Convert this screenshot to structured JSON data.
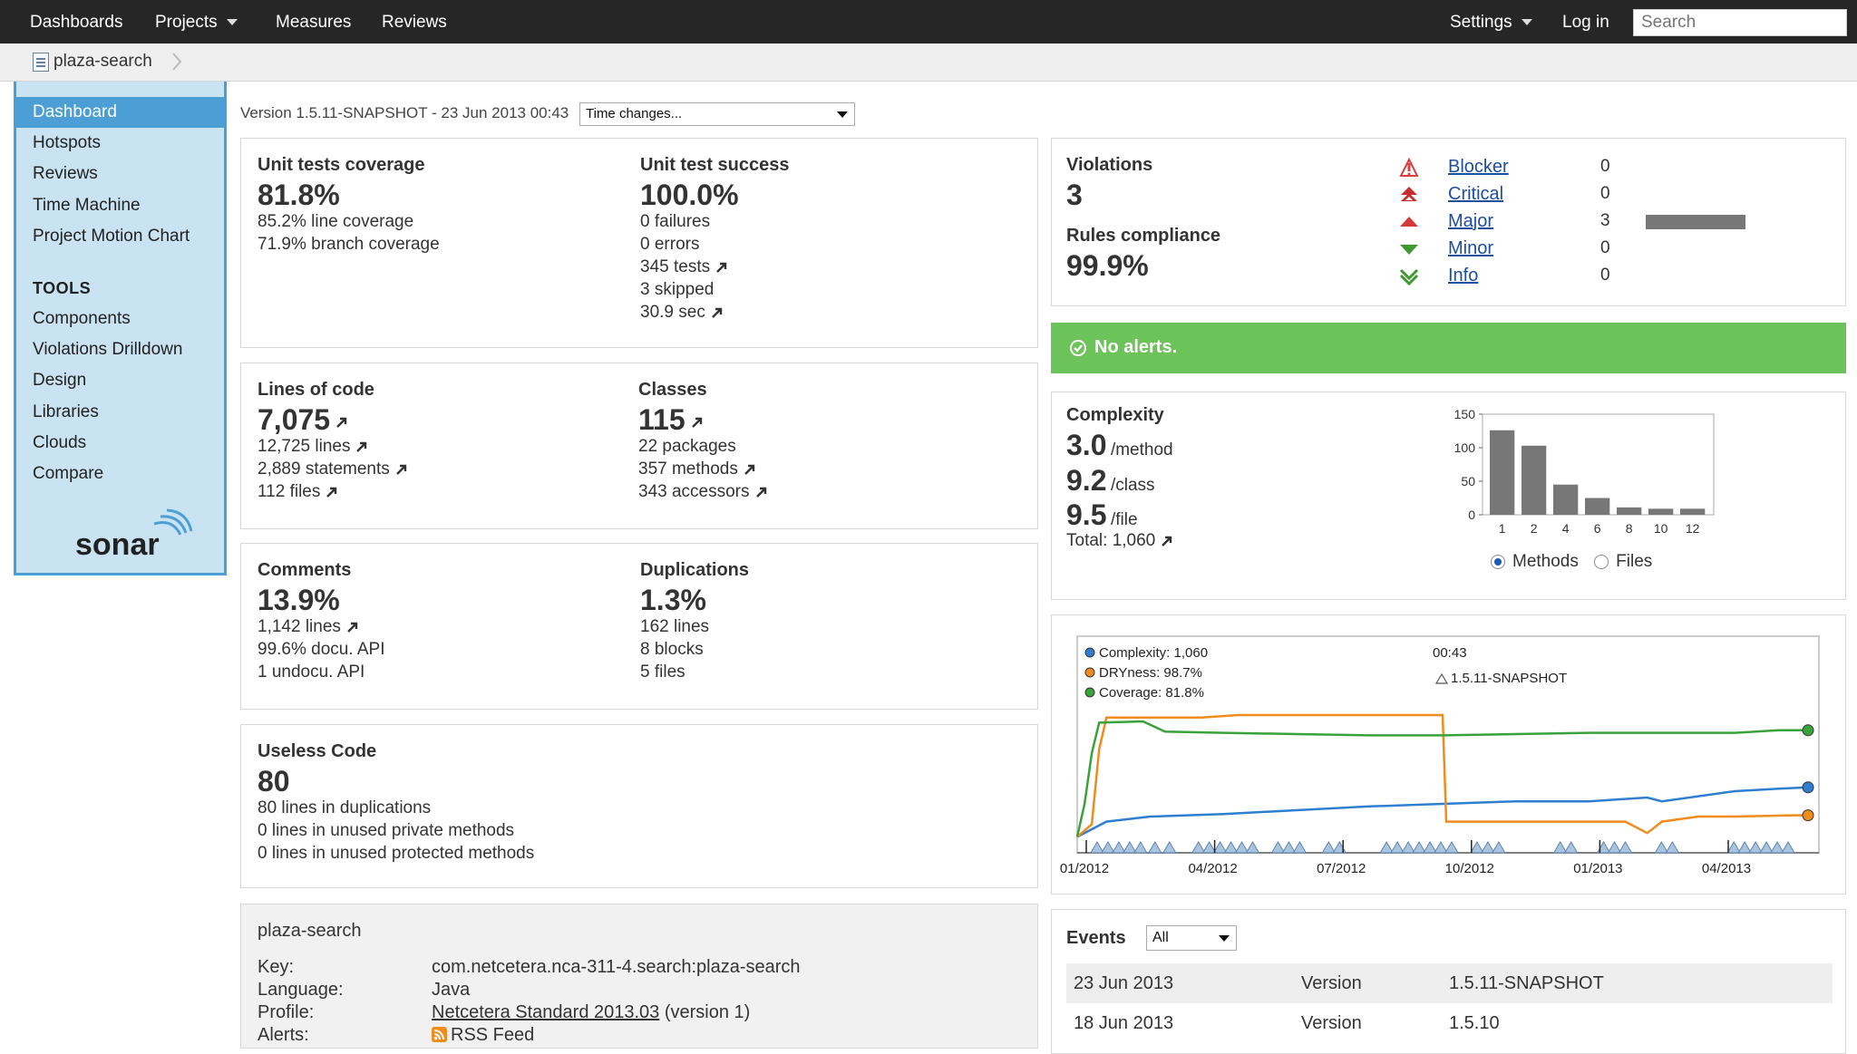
{
  "nav": {
    "dashboards": "Dashboards",
    "projects": "Projects",
    "measures": "Measures",
    "reviews": "Reviews",
    "settings": "Settings",
    "login": "Log in",
    "search_placeholder": "Search"
  },
  "breadcrumb": {
    "project": "plaza-search"
  },
  "sidebar": {
    "items": [
      "Dashboard",
      "Hotspots",
      "Reviews",
      "Time Machine",
      "Project Motion Chart"
    ],
    "tools_heading": "TOOLS",
    "tools": [
      "Components",
      "Violations Drilldown",
      "Design",
      "Libraries",
      "Clouds",
      "Compare"
    ],
    "logo_text": "sonar"
  },
  "header": {
    "version_line": "Version 1.5.11-SNAPSHOT - 23 Jun 2013 00:43",
    "time_changes": "Time changes..."
  },
  "tests": {
    "coverage_title": "Unit tests coverage",
    "coverage_value": "81.8%",
    "line_coverage": "85.2% line coverage",
    "branch_coverage": "71.9% branch coverage",
    "success_title": "Unit test success",
    "success_value": "100.0%",
    "failures": "0 failures",
    "errors": "0 errors",
    "tests": "345 tests",
    "skipped": "3 skipped",
    "duration": "30.9 sec"
  },
  "size": {
    "loc_title": "Lines of code",
    "loc_value": "7,075",
    "lines": "12,725 lines",
    "statements": "2,889 statements",
    "files": "112 files",
    "classes_title": "Classes",
    "classes_value": "115",
    "packages": "22 packages",
    "methods": "357 methods",
    "accessors": "343 accessors"
  },
  "comments": {
    "title": "Comments",
    "value": "13.9%",
    "lines": "1,142 lines",
    "docu_api": "99.6% docu. API",
    "undocu_api": "1 undocu. API",
    "dup_title": "Duplications",
    "dup_value": "1.3%",
    "dup_lines": "162 lines",
    "dup_blocks": "8 blocks",
    "dup_files": "5 files"
  },
  "useless": {
    "title": "Useless Code",
    "value": "80",
    "dup_lines": "80 lines in duplications",
    "private": "0 lines in unused private methods",
    "protected": "0 lines in unused protected methods"
  },
  "project_info": {
    "name": "plaza-search",
    "key_label": "Key:",
    "key": "com.netcetera.nca-311-4.search:plaza-search",
    "language_label": "Language:",
    "language": "Java",
    "profile_label": "Profile:",
    "profile": "Netcetera Standard 2013.03",
    "profile_version": "(version 1)",
    "alerts_label": "Alerts:",
    "rss": "RSS Feed"
  },
  "violations": {
    "title": "Violations",
    "value": "3",
    "compliance_title": "Rules compliance",
    "compliance_value": "99.9%",
    "severities": [
      {
        "name": "Blocker",
        "count": "0",
        "icon": "blocker-icon",
        "color": "#d94040"
      },
      {
        "name": "Critical",
        "count": "0",
        "icon": "critical-icon",
        "color": "#c42e2e"
      },
      {
        "name": "Major",
        "count": "3",
        "icon": "major-icon",
        "color": "#d43a3a"
      },
      {
        "name": "Minor",
        "count": "0",
        "icon": "minor-icon",
        "color": "#3e9a2f"
      },
      {
        "name": "Info",
        "count": "0",
        "icon": "info-icon",
        "color": "#3e9a2f"
      }
    ]
  },
  "alerts": {
    "text": "No alerts.",
    "color": "#6cc35a"
  },
  "complexity": {
    "title": "Complexity",
    "method_value": "3.0",
    "method_unit": "/method",
    "class_value": "9.2",
    "class_unit": "/class",
    "file_value": "9.5",
    "file_unit": "/file",
    "total": "Total: 1,060",
    "radio_methods": "Methods",
    "radio_files": "Files"
  },
  "timeline": {
    "legend": [
      "Complexity: 1,060",
      "DRYness: 98.7%",
      "Coverage: 81.8%"
    ],
    "legend_colors": [
      "#2f7fd0",
      "#f08c1e",
      "#3aa23a"
    ],
    "time": "00:43",
    "version": "1.5.11-SNAPSHOT",
    "x_labels": [
      "01/2012",
      "04/2012",
      "07/2012",
      "10/2012",
      "01/2013",
      "04/2013"
    ]
  },
  "events": {
    "title": "Events",
    "filter": "All",
    "rows": [
      {
        "date": "23 Jun 2013",
        "type": "Version",
        "name": "1.5.11-SNAPSHOT"
      },
      {
        "date": "18 Jun 2013",
        "type": "Version",
        "name": "1.5.10"
      }
    ]
  },
  "chart_data": [
    {
      "type": "bar",
      "categories": [
        "1",
        "2",
        "4",
        "6",
        "8",
        "10",
        "12"
      ],
      "values": [
        126,
        103,
        45,
        25,
        11,
        9,
        9
      ],
      "ylim": [
        0,
        150
      ],
      "yticks": [
        0,
        50,
        100,
        150
      ],
      "grid": false
    },
    {
      "type": "line",
      "x_tick_labels": [
        "01/2012",
        "04/2012",
        "07/2012",
        "10/2012",
        "01/2013",
        "04/2013"
      ],
      "series": [
        {
          "name": "Complexity",
          "color": "#2f7fd0",
          "points": [
            [
              0,
              0.96
            ],
            [
              0.04,
              0.84
            ],
            [
              0.1,
              0.8
            ],
            [
              0.2,
              0.78
            ],
            [
              0.3,
              0.75
            ],
            [
              0.4,
              0.72
            ],
            [
              0.5,
              0.7
            ],
            [
              0.6,
              0.68
            ],
            [
              0.7,
              0.68
            ],
            [
              0.78,
              0.65
            ],
            [
              0.8,
              0.68
            ],
            [
              0.9,
              0.6
            ],
            [
              0.96,
              0.58
            ],
            [
              1,
              0.57
            ]
          ]
        },
        {
          "name": "DRYness",
          "color": "#f08c1e",
          "points": [
            [
              0,
              0.96
            ],
            [
              0.02,
              0.86
            ],
            [
              0.03,
              0.27
            ],
            [
              0.04,
              0.02
            ],
            [
              0.12,
              0.02
            ],
            [
              0.17,
              0.02
            ],
            [
              0.22,
              0.0
            ],
            [
              0.5,
              0.0
            ],
            [
              0.505,
              0.84
            ],
            [
              0.6,
              0.84
            ],
            [
              0.7,
              0.84
            ],
            [
              0.75,
              0.84
            ],
            [
              0.78,
              0.93
            ],
            [
              0.8,
              0.84
            ],
            [
              0.85,
              0.8
            ],
            [
              0.9,
              0.8
            ],
            [
              0.98,
              0.79
            ],
            [
              1,
              0.79
            ]
          ]
        },
        {
          "name": "Coverage",
          "color": "#3aa23a",
          "points": [
            [
              0,
              0.96
            ],
            [
              0.01,
              0.7
            ],
            [
              0.02,
              0.3
            ],
            [
              0.03,
              0.06
            ],
            [
              0.09,
              0.05
            ],
            [
              0.12,
              0.13
            ],
            [
              0.2,
              0.14
            ],
            [
              0.3,
              0.15
            ],
            [
              0.4,
              0.16
            ],
            [
              0.5,
              0.16
            ],
            [
              0.6,
              0.15
            ],
            [
              0.7,
              0.14
            ],
            [
              0.8,
              0.14
            ],
            [
              0.9,
              0.14
            ],
            [
              0.96,
              0.12
            ],
            [
              1,
              0.12
            ]
          ]
        }
      ]
    }
  ]
}
